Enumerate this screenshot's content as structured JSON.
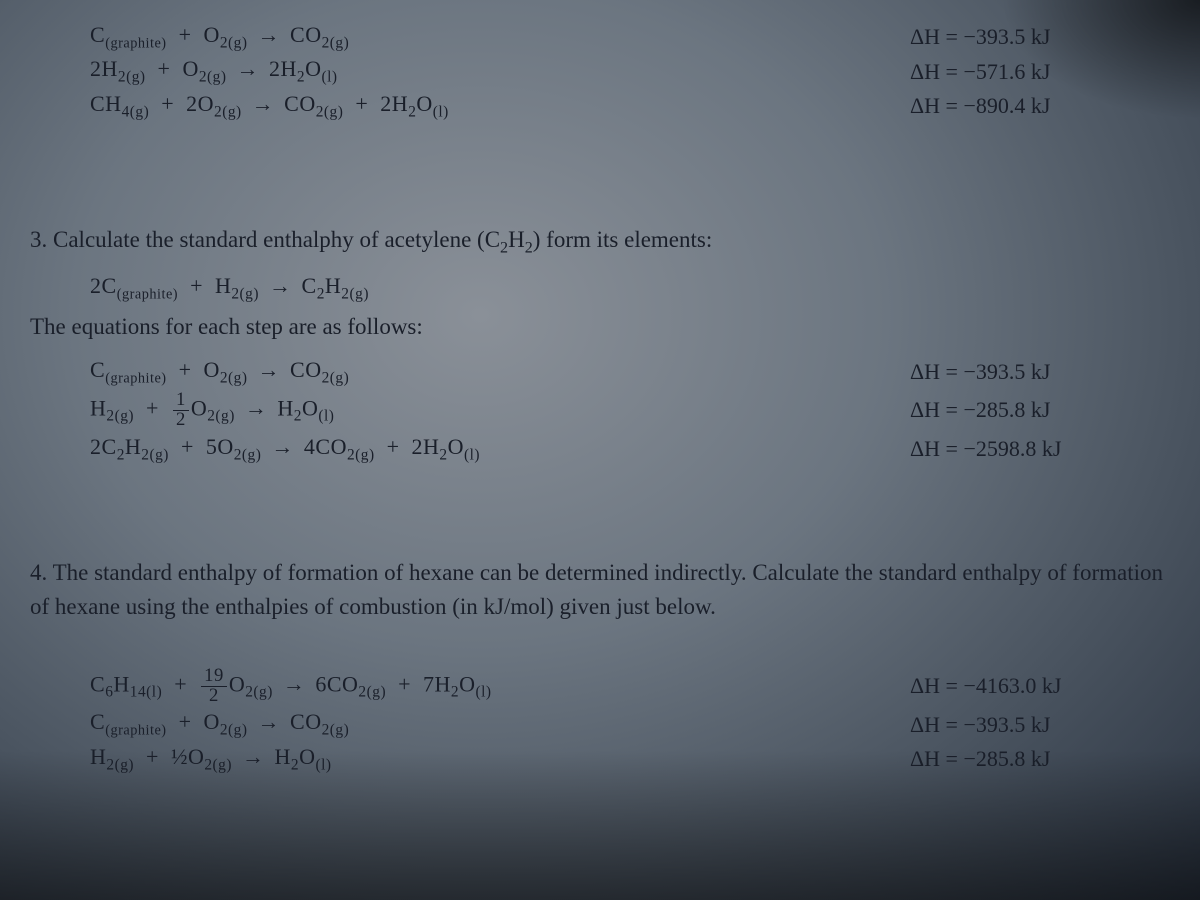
{
  "intro_equations": [
    {
      "lhs": "C<sub class='small-sub'>(graphite)</sub> &nbsp;+&nbsp; O<sub>2(g)</sub>",
      "rhs": "CO<sub>2(g)</sub>",
      "dh": "ΔH = −393.5 kJ"
    },
    {
      "lhs": "2H<sub>2(g)</sub> &nbsp;+&nbsp; O<sub>2(g)</sub>",
      "rhs": "2H<sub>2</sub>O<sub>(l)</sub>",
      "dh": "ΔH = −571.6 kJ"
    },
    {
      "lhs": "CH<sub>4(g)</sub> &nbsp;+&nbsp; 2O<sub>2(g)</sub>",
      "rhs": "CO<sub>2(g)</sub> &nbsp;+&nbsp; 2H<sub>2</sub>O<sub>(l)</sub>",
      "dh": "ΔH = −890.4 kJ"
    }
  ],
  "problem3": {
    "heading": "3. Calculate the standard enthalphy of acetylene (C<sub>2</sub>H<sub>2</sub>) form its elements:",
    "target_eq": {
      "lhs": "2C<sub class='small-sub'>(graphite)</sub> &nbsp;+&nbsp; H<sub>2(g)</sub>",
      "rhs": "C<sub>2</sub>H<sub>2(g)</sub>"
    },
    "sub_heading": "The equations for each step are as follows:",
    "equations": [
      {
        "lhs": "C<sub class='small-sub'>(graphite)</sub> &nbsp;+&nbsp; O<sub>2(g)</sub>",
        "rhs": "CO<sub>2(g)</sub>",
        "dh": "ΔH = −393.5 kJ"
      },
      {
        "lhs": "H<sub>2(g)</sub> &nbsp;+&nbsp; <span class='frac'><span class='num'>1</span><span class='den'>2</span></span>O<sub>2(g)</sub>",
        "rhs": "H<sub>2</sub>O<sub>(l)</sub>",
        "dh": "ΔH = −285.8 kJ"
      },
      {
        "lhs": "2C<sub>2</sub>H<sub>2(g)</sub> &nbsp;+&nbsp; 5O<sub>2(g)</sub>",
        "rhs": "4CO<sub>2(g)</sub> &nbsp;+&nbsp; 2H<sub>2</sub>O<sub>(l)</sub>",
        "dh": "ΔH = −2598.8 kJ"
      }
    ]
  },
  "problem4": {
    "heading": "4. The standard enthalpy of formation of hexane can be determined indirectly. Calculate the standard enthalpy of formation of hexane using the enthalpies of combustion (in kJ/mol) given just below.",
    "equations": [
      {
        "lhs": "C<sub>6</sub>H<sub>14(l)</sub> &nbsp;+&nbsp; <span class='frac'><span class='num'>19</span><span class='den'>2</span></span>O<sub>2(g)</sub>",
        "rhs": "6CO<sub>2(g)</sub> &nbsp;+&nbsp; 7H<sub>2</sub>O<sub>(l)</sub>",
        "dh": "ΔH = −4163.0 kJ"
      },
      {
        "lhs": "C<sub class='small-sub'>(graphite)</sub> &nbsp;+&nbsp; O<sub>2(g)</sub>",
        "rhs": "CO<sub>2(g)</sub>",
        "dh": "ΔH = −393.5 kJ"
      },
      {
        "lhs": "H<sub>2(g)</sub> &nbsp;+&nbsp; ½O<sub>2(g)</sub>",
        "rhs": "H<sub>2</sub>O<sub>(l)</sub>",
        "dh": "ΔH = −285.8 kJ"
      }
    ]
  }
}
